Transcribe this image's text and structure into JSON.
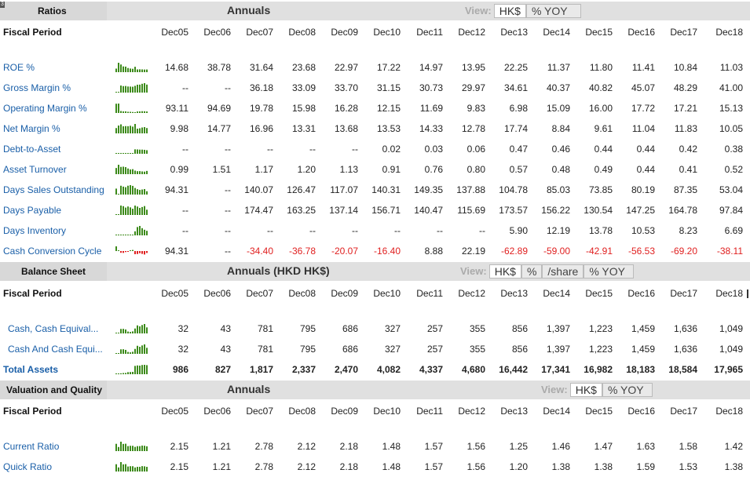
{
  "periods": [
    "Dec05",
    "Dec06",
    "Dec07",
    "Dec08",
    "Dec09",
    "Dec10",
    "Dec11",
    "Dec12",
    "Dec13",
    "Dec14",
    "Dec15",
    "Dec16",
    "Dec17",
    "Dec18"
  ],
  "colors": {
    "link": "#1a5fa8",
    "negative": "#e02020",
    "spark_green": "#3c8a1a",
    "spark_red": "#e02020"
  },
  "ratios": {
    "title": "Ratios",
    "annual_label": "Annuals",
    "view_label": "View:",
    "view_buttons": [
      "HK$",
      "% YOY"
    ],
    "fiscal_label": "Fiscal Period",
    "rows": [
      {
        "label": "ROE %",
        "values": [
          "14.68",
          "38.78",
          "31.64",
          "23.68",
          "22.97",
          "17.22",
          "14.97",
          "13.95",
          "22.25",
          "11.37",
          "11.80",
          "11.41",
          "10.84",
          "11.03"
        ]
      },
      {
        "label": "Gross Margin %",
        "values": [
          "--",
          "--",
          "36.18",
          "33.09",
          "33.70",
          "31.15",
          "30.73",
          "29.97",
          "34.61",
          "40.37",
          "40.82",
          "45.07",
          "48.29",
          "41.00"
        ]
      },
      {
        "label": "Operating Margin %",
        "values": [
          "93.11",
          "94.69",
          "19.78",
          "15.98",
          "16.28",
          "12.15",
          "11.69",
          "9.83",
          "6.98",
          "15.09",
          "16.00",
          "17.72",
          "17.21",
          "15.13"
        ]
      },
      {
        "label": "Net Margin %",
        "values": [
          "9.98",
          "14.77",
          "16.96",
          "13.31",
          "13.68",
          "13.53",
          "14.33",
          "12.78",
          "17.74",
          "8.84",
          "9.61",
          "11.04",
          "11.83",
          "10.05"
        ]
      },
      {
        "label": "Debt-to-Asset",
        "values": [
          "--",
          "--",
          "--",
          "--",
          "--",
          "0.02",
          "0.03",
          "0.06",
          "0.47",
          "0.46",
          "0.44",
          "0.44",
          "0.42",
          "0.38"
        ]
      },
      {
        "label": "Asset Turnover",
        "values": [
          "0.99",
          "1.51",
          "1.17",
          "1.20",
          "1.13",
          "0.91",
          "0.76",
          "0.80",
          "0.57",
          "0.48",
          "0.49",
          "0.44",
          "0.41",
          "0.52"
        ]
      },
      {
        "label": "Days Sales Outstanding",
        "values": [
          "94.31",
          "--",
          "140.07",
          "126.47",
          "117.07",
          "140.31",
          "149.35",
          "137.88",
          "104.78",
          "85.03",
          "73.85",
          "80.19",
          "87.35",
          "53.04"
        ]
      },
      {
        "label": "Days Payable",
        "values": [
          "--",
          "--",
          "174.47",
          "163.25",
          "137.14",
          "156.71",
          "140.47",
          "115.69",
          "173.57",
          "156.22",
          "130.54",
          "147.25",
          "164.78",
          "97.84"
        ]
      },
      {
        "label": "Days Inventory",
        "values": [
          "--",
          "--",
          "--",
          "--",
          "--",
          "--",
          "--",
          "--",
          "5.90",
          "12.19",
          "13.78",
          "10.53",
          "8.23",
          "6.69"
        ]
      },
      {
        "label": "Cash Conversion Cycle",
        "values": [
          "94.31",
          "--",
          "-34.40",
          "-36.78",
          "-20.07",
          "-16.40",
          "8.88",
          "22.19",
          "-62.89",
          "-59.00",
          "-42.91",
          "-56.53",
          "-69.20",
          "-38.11"
        ]
      }
    ]
  },
  "balance": {
    "title": "Balance Sheet",
    "annual_label": "Annuals (HKD HK$)",
    "view_label": "View:",
    "view_buttons": [
      "HK$",
      "%",
      "/share",
      "% YOY"
    ],
    "fiscal_label": "Fiscal Period",
    "rows": [
      {
        "label": "Cash, Cash Equival...",
        "values": [
          "32",
          "43",
          "781",
          "795",
          "686",
          "327",
          "257",
          "355",
          "856",
          "1,397",
          "1,223",
          "1,459",
          "1,636",
          "1,049"
        ]
      },
      {
        "label": "Cash And Cash Equi...",
        "values": [
          "32",
          "43",
          "781",
          "795",
          "686",
          "327",
          "257",
          "355",
          "856",
          "1,397",
          "1,223",
          "1,459",
          "1,636",
          "1,049"
        ]
      },
      {
        "label": "Total Assets",
        "values": [
          "986",
          "827",
          "1,817",
          "2,337",
          "2,470",
          "4,082",
          "4,337",
          "4,680",
          "16,442",
          "17,341",
          "16,982",
          "18,183",
          "18,584",
          "17,965"
        ]
      }
    ]
  },
  "valuation": {
    "title": "Valuation and Quality",
    "annual_label": "Annuals",
    "view_label": "View:",
    "view_buttons": [
      "HK$",
      "% YOY"
    ],
    "fiscal_label": "Fiscal Period",
    "rows": [
      {
        "label": "Current Ratio",
        "values": [
          "2.15",
          "1.21",
          "2.78",
          "2.12",
          "2.18",
          "1.48",
          "1.57",
          "1.56",
          "1.25",
          "1.46",
          "1.47",
          "1.63",
          "1.58",
          "1.42"
        ]
      },
      {
        "label": "Quick Ratio",
        "values": [
          "2.15",
          "1.21",
          "2.78",
          "2.12",
          "2.18",
          "1.48",
          "1.57",
          "1.56",
          "1.20",
          "1.38",
          "1.38",
          "1.59",
          "1.53",
          "1.38"
        ]
      }
    ]
  }
}
